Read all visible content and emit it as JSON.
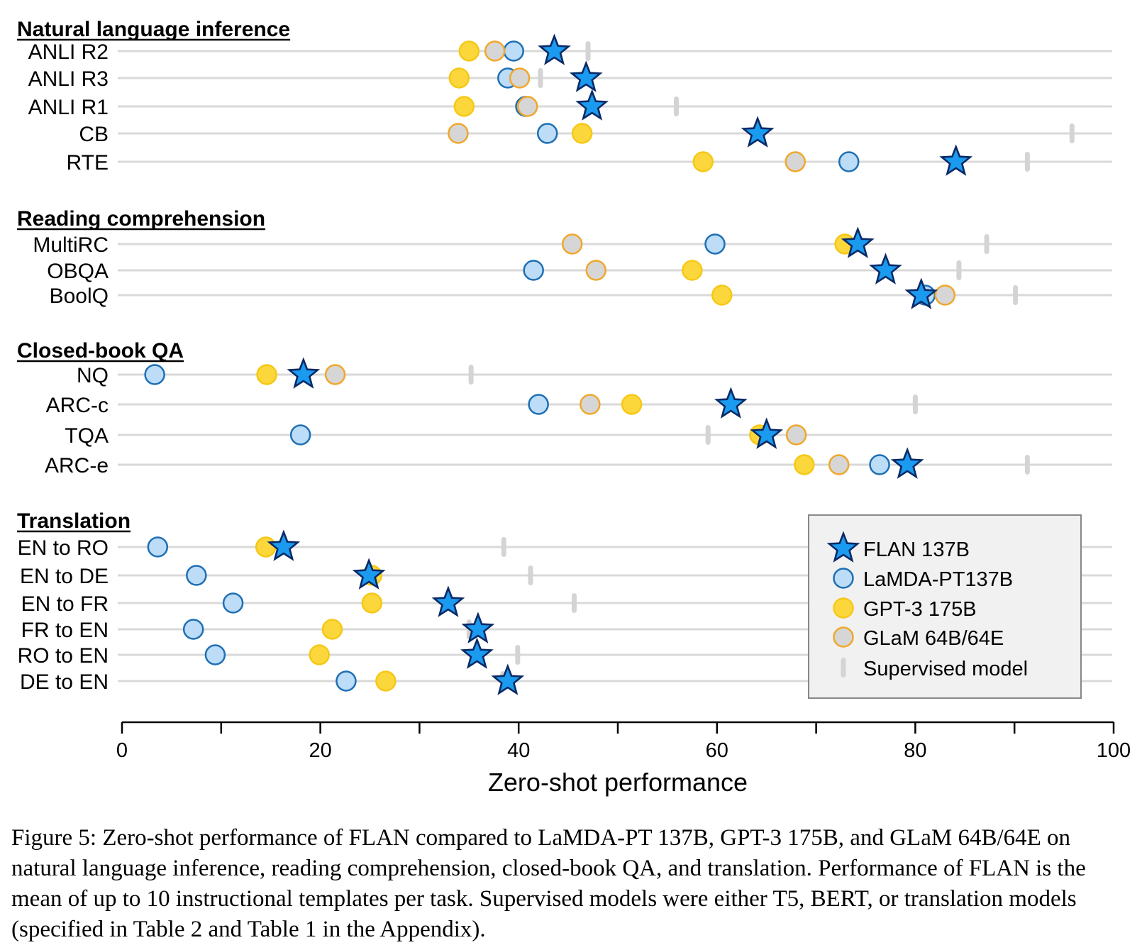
{
  "chart_data": {
    "type": "scatter",
    "xlabel": "Zero-shot performance",
    "xlim": [
      0,
      100
    ],
    "xticks": [
      0,
      20,
      40,
      60,
      80,
      100
    ],
    "grid": "horizontal task lines",
    "legend_position": "bottom-right",
    "series": [
      {
        "name": "FLAN 137B",
        "marker": "star",
        "fill": "#1a9bef",
        "stroke": "#0a2a66"
      },
      {
        "name": "LaMDA-PT137B",
        "marker": "circle",
        "fill": "#bcdcf8",
        "stroke": "#1e6fb3"
      },
      {
        "name": "GPT-3 175B",
        "marker": "circle",
        "fill": "#fcd73c",
        "stroke": "#f5c816"
      },
      {
        "name": "GLaM 64B/64E",
        "marker": "circle",
        "fill": "#d6d6d6",
        "stroke": "#f0a72a"
      },
      {
        "name": "Supervised model",
        "marker": "tick",
        "fill": "#d4d4d4"
      }
    ],
    "groups": [
      {
        "title": "Natural language inference",
        "tasks": [
          {
            "task": "ANLI R2",
            "flan": 43.6,
            "lamda": 39.5,
            "gpt3": 35.0,
            "glam": 37.6,
            "supervised": 47.0
          },
          {
            "task": "ANLI R3",
            "flan": 46.8,
            "lamda": 38.9,
            "gpt3": 34.0,
            "glam": 40.1,
            "supervised": 42.2
          },
          {
            "task": "ANLI R1",
            "flan": 47.4,
            "lamda": 40.7,
            "gpt3": 34.5,
            "glam": 40.9,
            "supervised": 55.9
          },
          {
            "task": "CB",
            "flan": 64.1,
            "lamda": 42.9,
            "gpt3": 46.4,
            "glam": 33.9,
            "supervised": 95.8
          },
          {
            "task": "RTE",
            "flan": 84.1,
            "lamda": 73.3,
            "gpt3": 58.6,
            "glam": 67.9,
            "supervised": 91.3
          }
        ]
      },
      {
        "title": "Reading comprehension",
        "tasks": [
          {
            "task": "MultiRC",
            "flan": 74.2,
            "lamda": 59.8,
            "gpt3": 72.9,
            "glam": 45.4,
            "supervised": 87.2
          },
          {
            "task": "OBQA",
            "flan": 77.0,
            "lamda": 41.5,
            "gpt3": 57.5,
            "glam": 47.8,
            "supervised": 84.4
          },
          {
            "task": "BoolQ",
            "flan": 80.6,
            "lamda": 81.0,
            "gpt3": 60.5,
            "glam": 83.0,
            "supervised": 90.1
          }
        ]
      },
      {
        "title": "Closed-book QA",
        "tasks": [
          {
            "task": "NQ",
            "flan": 18.3,
            "lamda": 3.3,
            "gpt3": 14.6,
            "glam": 21.5,
            "supervised": 35.2
          },
          {
            "task": "ARC-c",
            "flan": 61.4,
            "lamda": 42.0,
            "gpt3": 51.4,
            "glam": 47.2,
            "supervised": 80.0
          },
          {
            "task": "TQA",
            "flan": 65.0,
            "lamda": 18.0,
            "gpt3": 64.3,
            "glam": 68.0,
            "supervised": 59.1
          },
          {
            "task": "ARC-e",
            "flan": 79.2,
            "lamda": 76.4,
            "gpt3": 68.8,
            "glam": 72.3,
            "supervised": 91.3
          }
        ]
      },
      {
        "title": "Translation",
        "tasks": [
          {
            "task": "EN to RO",
            "flan": 16.3,
            "lamda": 3.6,
            "gpt3": 14.5,
            "glam": null,
            "supervised": 38.5
          },
          {
            "task": "EN to DE",
            "flan": 24.9,
            "lamda": 7.5,
            "gpt3": 25.2,
            "glam": null,
            "supervised": 41.2
          },
          {
            "task": "EN to FR",
            "flan": 32.9,
            "lamda": 11.2,
            "gpt3": 25.2,
            "glam": null,
            "supervised": 45.6
          },
          {
            "task": "FR to EN",
            "flan": 35.9,
            "lamda": 7.2,
            "gpt3": 21.2,
            "glam": null,
            "supervised": 35.0
          },
          {
            "task": "RO to EN",
            "flan": 35.8,
            "lamda": 9.4,
            "gpt3": 19.9,
            "glam": null,
            "supervised": 39.9
          },
          {
            "task": "DE to EN",
            "flan": 38.9,
            "lamda": 22.6,
            "gpt3": 26.6,
            "glam": null,
            "supervised": 38.4
          }
        ]
      }
    ]
  },
  "caption": "Figure 5: Zero-shot performance of FLAN compared to LaMDA-PT 137B, GPT-3 175B, and GLaM 64B/64E on natural language inference, reading comprehension, closed-book QA, and translation. Performance of FLAN is the mean of up to 10 instructional templates per task. Supervised models were either T5, BERT, or translation models (specified in Table 2 and Table 1 in the Appendix)."
}
